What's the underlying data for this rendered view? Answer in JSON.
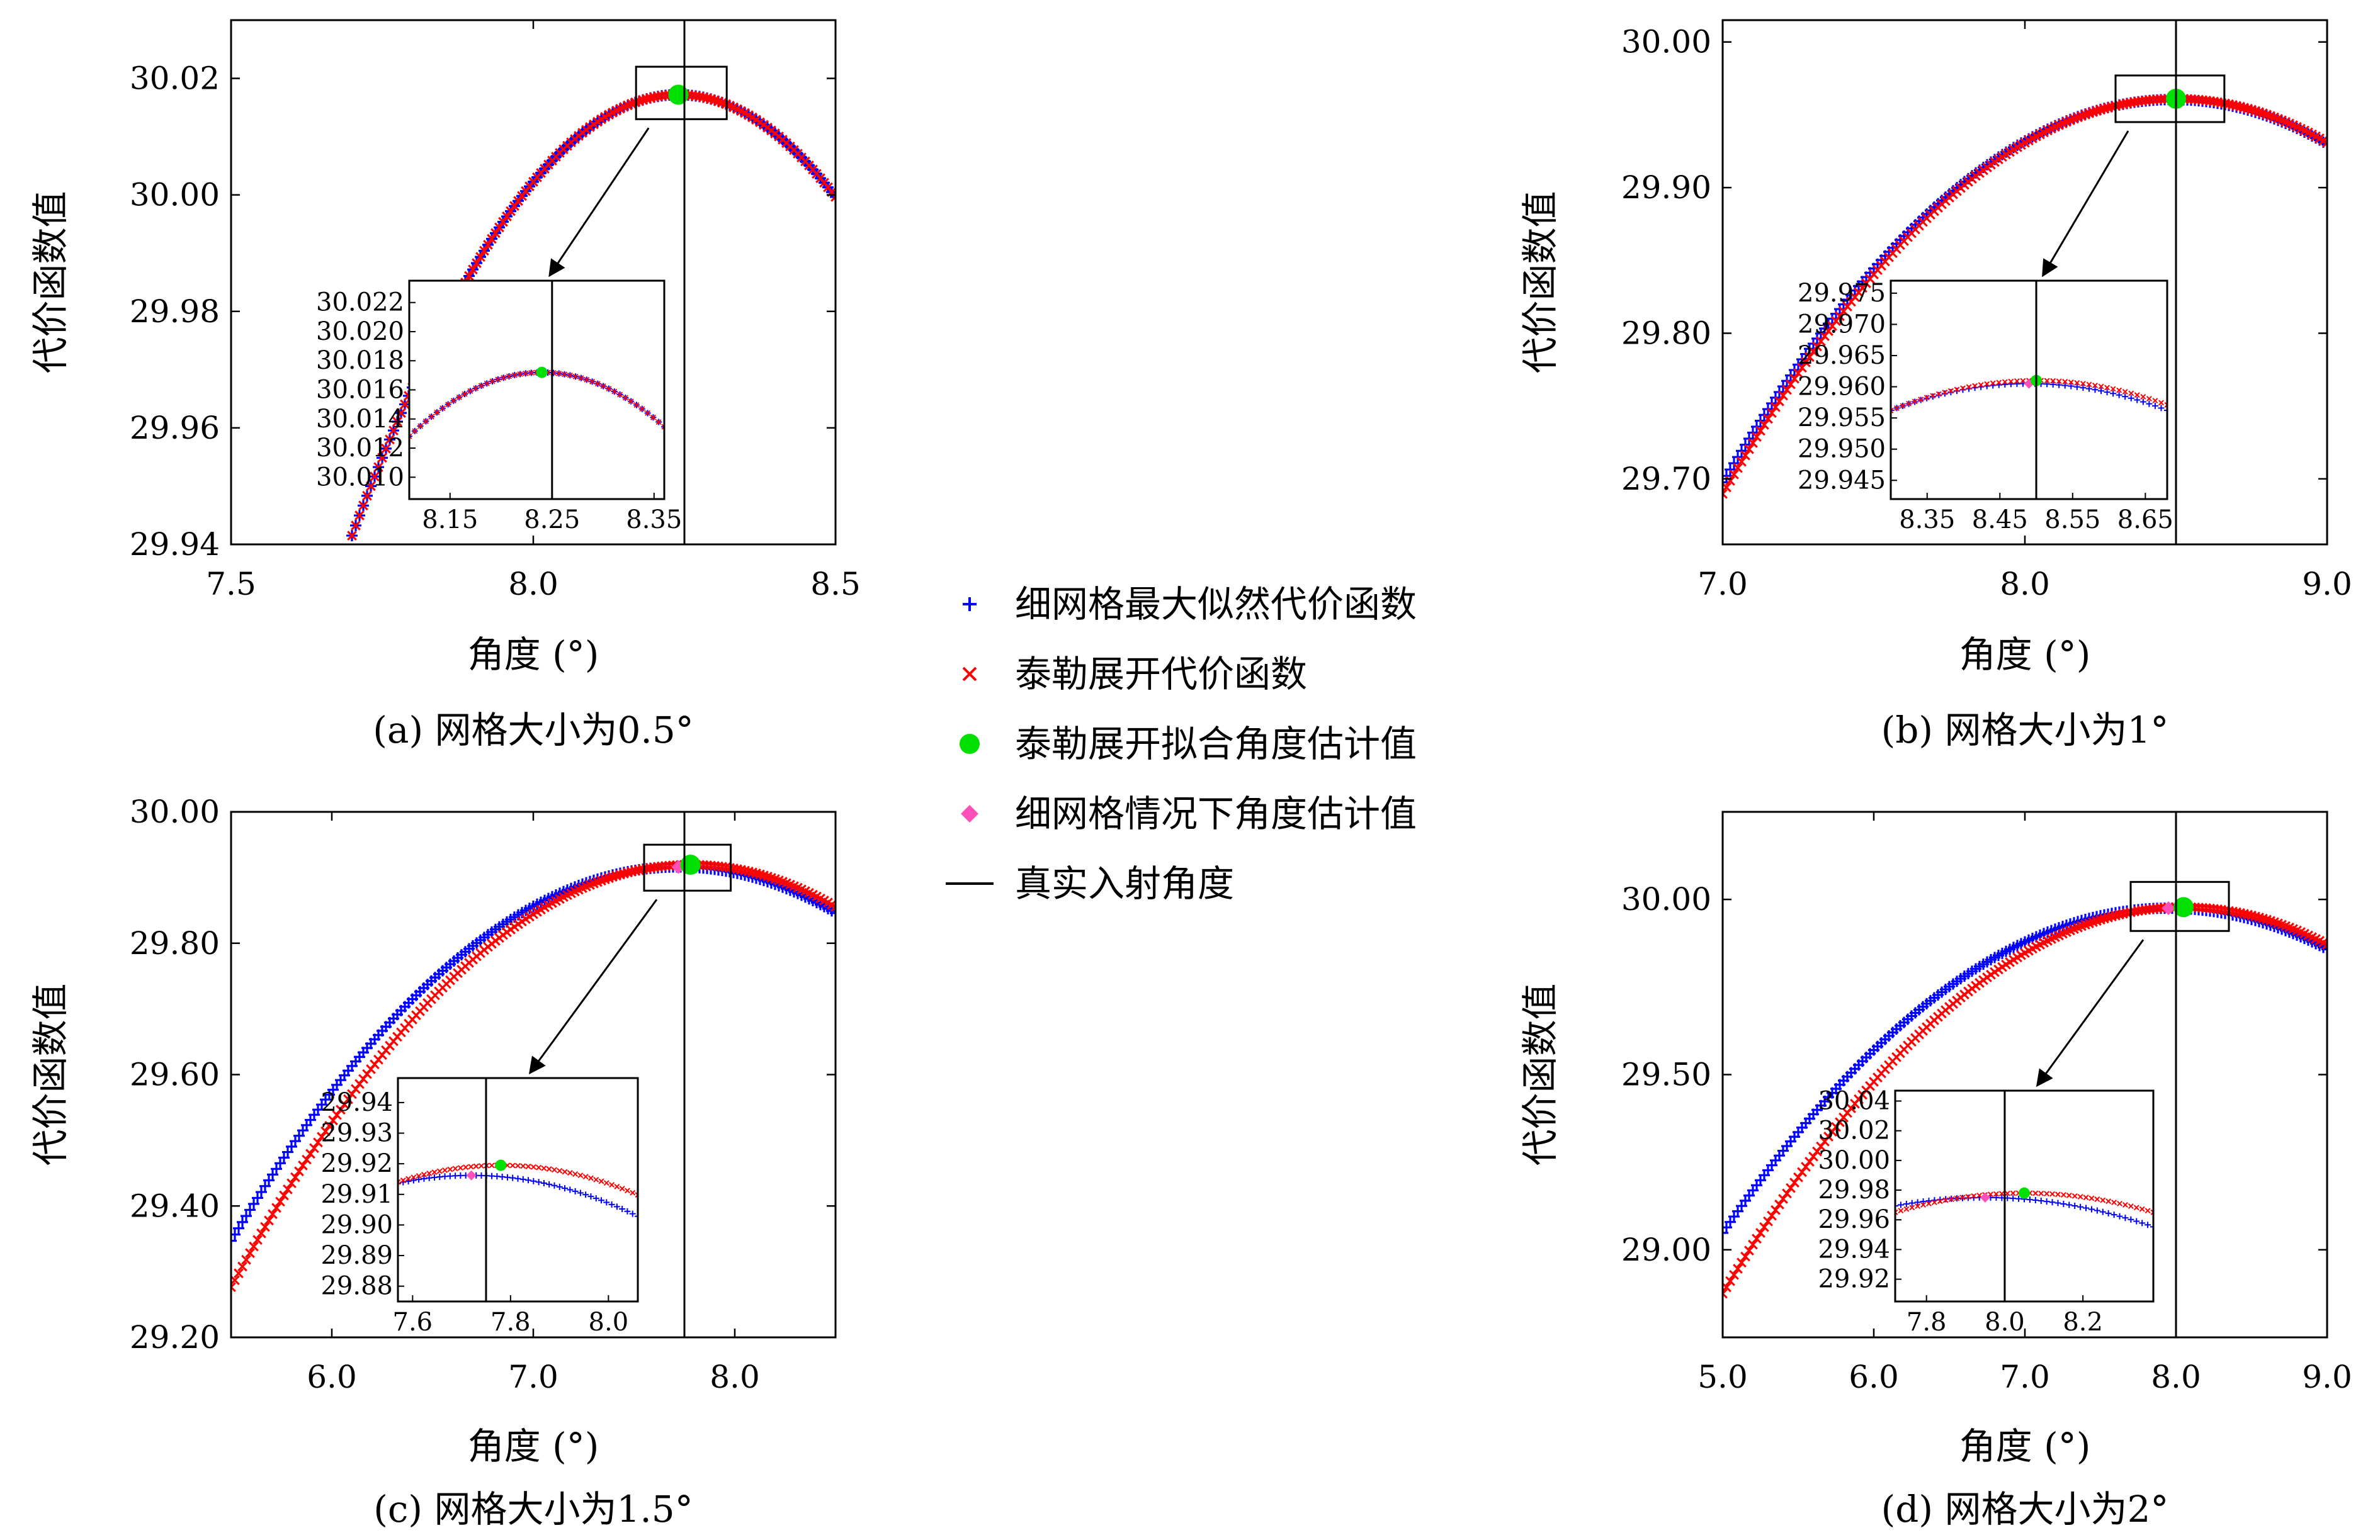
{
  "figure": {
    "legend": [
      {
        "key": "fine_grid",
        "label": "细网格最大似然代价函数",
        "marker": "plus",
        "color": "#0000ff"
      },
      {
        "key": "taylor",
        "label": "泰勒展开代价函数",
        "marker": "cross",
        "color": "#ff0000"
      },
      {
        "key": "taylor_est",
        "label": "泰勒展开拟合角度估计值",
        "marker": "circle",
        "color": "#00e000"
      },
      {
        "key": "fine_est",
        "label": "细网格情况下角度估计值",
        "marker": "diamond",
        "color": "#ff4fb8"
      },
      {
        "key": "true_angle",
        "label": "真实入射角度",
        "marker": "line",
        "color": "#000000"
      }
    ]
  },
  "chart_data": [
    {
      "id": "a",
      "type": "scatter",
      "caption": "(a) 网格大小为0.5°",
      "xlabel": "角度 (°)",
      "ylabel": "代价函数值",
      "xlim": [
        7.5,
        8.5
      ],
      "ylim": [
        29.94,
        30.03
      ],
      "xticks": [
        7.5,
        8.0,
        8.5
      ],
      "xtick_labels": [
        "7.5",
        "8.0",
        "8.5"
      ],
      "yticks": [
        29.94,
        29.96,
        29.98,
        30.0,
        30.02
      ],
      "ytick_labels": [
        "29.94",
        "29.96",
        "29.98",
        "30.00",
        "30.02"
      ],
      "true_angle": 8.25,
      "fine_curve": {
        "peak_x": 8.24,
        "peak_y": 30.0172,
        "curvature": 0.2596,
        "x_range": [
          7.5,
          8.5
        ]
      },
      "taylor_curve": {
        "peak_x": 8.24,
        "peak_y": 30.0172,
        "curvature": 0.2596,
        "x_range": [
          7.5,
          8.5
        ]
      },
      "taylor_estimate": {
        "x": 8.24,
        "y": 30.0172
      },
      "fine_estimate": {
        "x": 8.24,
        "y": 30.0172
      },
      "zoom_box": {
        "x": [
          8.17,
          8.32
        ],
        "y": [
          30.013,
          30.022
        ]
      },
      "inset": {
        "xlim": [
          8.11,
          8.36
        ],
        "ylim": [
          30.0085,
          30.0235
        ],
        "xticks": [
          8.15,
          8.25,
          8.35
        ],
        "xtick_labels": [
          "8.15",
          "8.25",
          "8.35"
        ],
        "yticks": [
          30.01,
          30.012,
          30.014,
          30.016,
          30.018,
          30.02,
          30.022
        ],
        "ytick_labels": [
          "30.010",
          "30.012",
          "30.014",
          "30.016",
          "30.018",
          "30.020",
          "30.022"
        ]
      }
    },
    {
      "id": "b",
      "type": "scatter",
      "caption": "(b) 网格大小为1°",
      "xlabel": "角度 (°)",
      "ylabel": "代价函数值",
      "xlim": [
        7.0,
        9.0
      ],
      "ylim": [
        29.655,
        30.015
      ],
      "xticks": [
        7.0,
        8.0,
        9.0
      ],
      "xtick_labels": [
        "7.0",
        "8.0",
        "9.0"
      ],
      "yticks": [
        29.7,
        29.8,
        29.9,
        30.0
      ],
      "ytick_labels": [
        "29.70",
        "29.80",
        "29.90",
        "30.00"
      ],
      "true_angle": 8.5,
      "fine_curve": {
        "peak_x": 8.49,
        "peak_y": 29.9605,
        "curvature": 0.1184,
        "x_range": [
          7.0,
          9.0
        ]
      },
      "taylor_curve": {
        "peak_x": 8.5,
        "peak_y": 29.961,
        "curvature": 0.1206,
        "x_range": [
          7.0,
          9.0
        ]
      },
      "taylor_estimate": {
        "x": 8.5,
        "y": 29.961
      },
      "fine_estimate": {
        "x": 8.49,
        "y": 29.9605
      },
      "zoom_box": {
        "x": [
          8.3,
          8.66
        ],
        "y": [
          29.945,
          29.977
        ]
      },
      "inset": {
        "xlim": [
          8.3,
          8.68
        ],
        "ylim": [
          29.942,
          29.977
        ],
        "xticks": [
          8.35,
          8.45,
          8.55,
          8.65
        ],
        "xtick_labels": [
          "8.35",
          "8.45",
          "8.55",
          "8.65"
        ],
        "yticks": [
          29.945,
          29.95,
          29.955,
          29.96,
          29.965,
          29.97,
          29.975
        ],
        "ytick_labels": [
          "29.945",
          "29.950",
          "29.955",
          "29.960",
          "29.965",
          "29.970",
          "29.975"
        ]
      }
    },
    {
      "id": "c",
      "type": "scatter",
      "caption": "(c) 网格大小为1.5°",
      "xlabel": "角度 (°)",
      "ylabel": "代价函数值",
      "xlim": [
        5.5,
        8.5
      ],
      "ylim": [
        29.2,
        30.0
      ],
      "xticks": [
        6.0,
        7.0,
        8.0
      ],
      "xtick_labels": [
        "6.0",
        "7.0",
        "8.0"
      ],
      "yticks": [
        29.2,
        29.4,
        29.6,
        29.8,
        30.0
      ],
      "ytick_labels": [
        "29.20",
        "29.40",
        "29.60",
        "29.80",
        "30.00"
      ],
      "true_angle": 7.75,
      "fine_curve": {
        "peak_x": 7.72,
        "peak_y": 29.9162,
        "curvature": 0.1155,
        "x_range": [
          5.5,
          8.5
        ]
      },
      "taylor_curve": {
        "peak_x": 7.78,
        "peak_y": 29.9195,
        "curvature": 0.1237,
        "x_range": [
          5.5,
          8.5
        ]
      },
      "taylor_estimate": {
        "x": 7.78,
        "y": 29.9195
      },
      "fine_estimate": {
        "x": 7.72,
        "y": 29.9162
      },
      "zoom_box": {
        "x": [
          7.55,
          7.98
        ],
        "y": [
          29.88,
          29.95
        ]
      },
      "inset": {
        "xlim": [
          7.57,
          8.06
        ],
        "ylim": [
          29.875,
          29.948
        ],
        "xticks": [
          7.6,
          7.8,
          8.0
        ],
        "xtick_labels": [
          "7.6",
          "7.8",
          "8.0"
        ],
        "yticks": [
          29.88,
          29.89,
          29.9,
          29.91,
          29.92,
          29.93,
          29.94
        ],
        "ytick_labels": [
          "29.88",
          "29.89",
          "29.90",
          "29.91",
          "29.92",
          "29.93",
          "29.94"
        ]
      }
    },
    {
      "id": "d",
      "type": "scatter",
      "caption": "(d) 网格大小为2°",
      "xlabel": "角度 (°)",
      "ylabel": "代价函数值",
      "xlim": [
        5.0,
        9.0
      ],
      "ylim": [
        28.75,
        30.25
      ],
      "xticks": [
        5.0,
        6.0,
        7.0,
        8.0,
        9.0
      ],
      "xtick_labels": [
        "5.0",
        "6.0",
        "7.0",
        "8.0",
        "9.0"
      ],
      "yticks": [
        29.0,
        29.5,
        30.0
      ],
      "ytick_labels": [
        "29.00",
        "29.50",
        "30.00"
      ],
      "true_angle": 8.0,
      "fine_curve": {
        "peak_x": 7.95,
        "peak_y": 29.975,
        "curvature": 0.1065,
        "x_range": [
          5.0,
          9.0
        ]
      },
      "taylor_curve": {
        "peak_x": 8.05,
        "peak_y": 29.978,
        "curvature": 0.1186,
        "x_range": [
          5.0,
          9.0
        ]
      },
      "taylor_estimate": {
        "x": 8.05,
        "y": 29.978
      },
      "fine_estimate": {
        "x": 7.95,
        "y": 29.975
      },
      "zoom_box": {
        "x": [
          7.7,
          8.35
        ],
        "y": [
          29.91,
          30.05
        ]
      },
      "inset": {
        "xlim": [
          7.72,
          8.38
        ],
        "ylim": [
          29.905,
          30.047
        ],
        "xticks": [
          7.8,
          8.0,
          8.2
        ],
        "xtick_labels": [
          "7.8",
          "8.0",
          "8.2"
        ],
        "yticks": [
          29.92,
          29.94,
          29.96,
          29.98,
          30.0,
          30.02,
          30.04
        ],
        "ytick_labels": [
          "29.92",
          "29.94",
          "29.96",
          "29.98",
          "30.00",
          "30.02",
          "30.04"
        ]
      }
    }
  ]
}
